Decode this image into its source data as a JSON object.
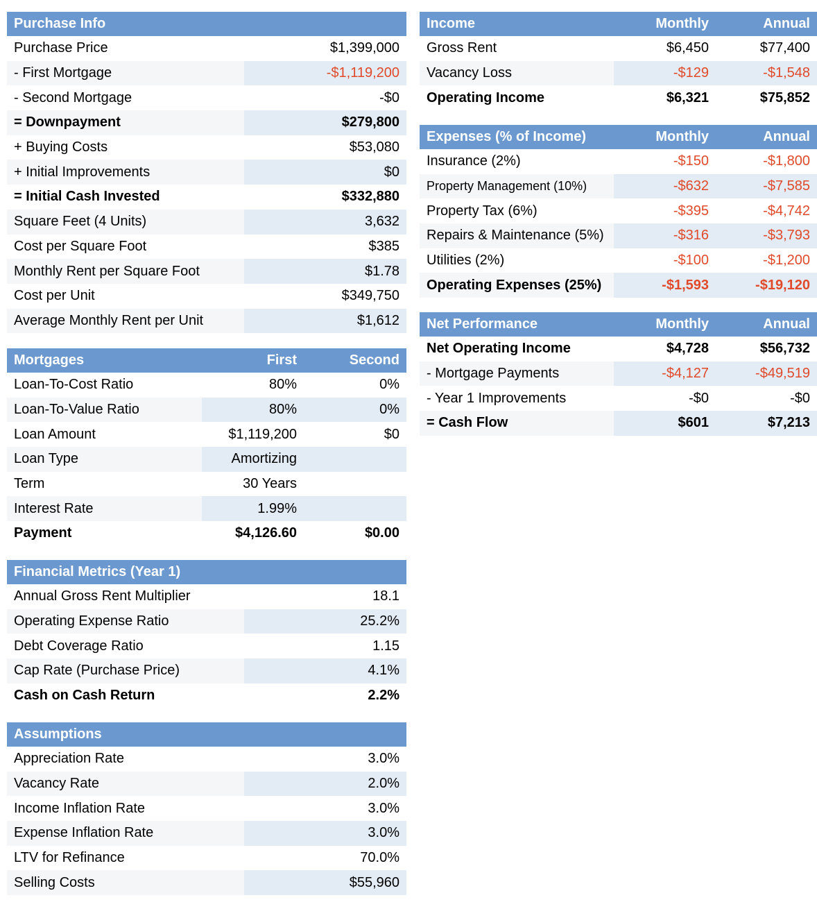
{
  "purchase": {
    "title": "Purchase Info",
    "rows": [
      {
        "label": "Purchase Price",
        "value": "$1,399,000"
      },
      {
        "label": "- First Mortgage",
        "value": "-$1,119,200"
      },
      {
        "label": "- Second Mortgage",
        "value": "-$0"
      },
      {
        "label": "= Downpayment",
        "value": "$279,800"
      },
      {
        "label": "+ Buying Costs",
        "value": "$53,080"
      },
      {
        "label": "+ Initial Improvements",
        "value": "$0"
      },
      {
        "label": "= Initial Cash Invested",
        "value": "$332,880"
      },
      {
        "label": "Square Feet (4 Units)",
        "value": "3,632"
      },
      {
        "label": "Cost per Square Foot",
        "value": "$385"
      },
      {
        "label": "Monthly Rent per Square Foot",
        "value": "$1.78"
      },
      {
        "label": "Cost per Unit",
        "value": "$349,750"
      },
      {
        "label": "Average Monthly Rent per Unit",
        "value": "$1,612"
      }
    ]
  },
  "mortgages": {
    "title": "Mortgages",
    "col1": "First",
    "col2": "Second",
    "rows": [
      {
        "label": "Loan-To-Cost Ratio",
        "first": "80%",
        "second": "0%"
      },
      {
        "label": "Loan-To-Value Ratio",
        "first": "80%",
        "second": "0%"
      },
      {
        "label": "Loan Amount",
        "first": "$1,119,200",
        "second": "$0"
      },
      {
        "label": "Loan Type",
        "first": "Amortizing",
        "second": ""
      },
      {
        "label": "Term",
        "first": "30 Years",
        "second": ""
      },
      {
        "label": "Interest Rate",
        "first": "1.99%",
        "second": ""
      },
      {
        "label": "Payment",
        "first": "$4,126.60",
        "second": "$0.00"
      }
    ]
  },
  "metrics": {
    "title": "Financial Metrics (Year 1)",
    "rows": [
      {
        "label": "Annual Gross Rent Multiplier",
        "value": "18.1"
      },
      {
        "label": "Operating Expense Ratio",
        "value": "25.2%"
      },
      {
        "label": "Debt Coverage Ratio",
        "value": "1.15"
      },
      {
        "label": "Cap Rate (Purchase Price)",
        "value": "4.1%"
      },
      {
        "label": "Cash on Cash Return",
        "value": "2.2%"
      }
    ]
  },
  "assumptions": {
    "title": "Assumptions",
    "rows": [
      {
        "label": "Appreciation Rate",
        "value": "3.0%"
      },
      {
        "label": "Vacancy Rate",
        "value": "2.0%"
      },
      {
        "label": "Income Inflation Rate",
        "value": "3.0%"
      },
      {
        "label": "Expense Inflation Rate",
        "value": "3.0%"
      },
      {
        "label": "LTV for Refinance",
        "value": "70.0%"
      },
      {
        "label": "Selling Costs",
        "value": "$55,960"
      }
    ]
  },
  "income": {
    "title": "Income",
    "monthly": "Monthly",
    "annual": "Annual",
    "rows": [
      {
        "label": "Gross Rent",
        "monthly": "$6,450",
        "annual": "$77,400"
      },
      {
        "label": "Vacancy Loss",
        "monthly": "-$129",
        "annual": "-$1,548"
      },
      {
        "label": "Operating Income",
        "monthly": "$6,321",
        "annual": "$75,852"
      }
    ]
  },
  "expenses": {
    "title": "Expenses (% of Income)",
    "monthly": "Monthly",
    "annual": "Annual",
    "rows": [
      {
        "label": "Insurance (2%)",
        "monthly": "-$150",
        "annual": "-$1,800"
      },
      {
        "label": "Property Management (10%)",
        "monthly": "-$632",
        "annual": "-$7,585"
      },
      {
        "label": "Property Tax (6%)",
        "monthly": "-$395",
        "annual": "-$4,742"
      },
      {
        "label": "Repairs & Maintenance (5%)",
        "monthly": "-$316",
        "annual": "-$3,793"
      },
      {
        "label": "Utilities (2%)",
        "monthly": "-$100",
        "annual": "-$1,200"
      },
      {
        "label": "Operating Expenses (25%)",
        "monthly": "-$1,593",
        "annual": "-$19,120"
      }
    ]
  },
  "netperf": {
    "title": "Net Performance",
    "monthly": "Monthly",
    "annual": "Annual",
    "rows": [
      {
        "label": "Net Operating Income",
        "monthly": "$4,728",
        "annual": "$56,732"
      },
      {
        "label": "- Mortgage Payments",
        "monthly": "-$4,127",
        "annual": "-$49,519"
      },
      {
        "label": "- Year 1 Improvements",
        "monthly": "-$0",
        "annual": "-$0"
      },
      {
        "label": "= Cash Flow",
        "monthly": "$601",
        "annual": "$7,213"
      }
    ]
  },
  "colors": {
    "header": "#6b99cf",
    "negative": "#e04a2a",
    "shade": "#e3ebf4"
  }
}
